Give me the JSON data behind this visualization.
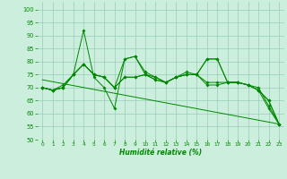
{
  "xlabel": "Humidité relative (%)",
  "xlim": [
    -0.5,
    23.5
  ],
  "ylim": [
    50,
    103
  ],
  "yticks": [
    50,
    55,
    60,
    65,
    70,
    75,
    80,
    85,
    90,
    95,
    100
  ],
  "xticks": [
    0,
    1,
    2,
    3,
    4,
    5,
    6,
    7,
    8,
    9,
    10,
    11,
    12,
    13,
    14,
    15,
    16,
    17,
    18,
    19,
    20,
    21,
    22,
    23
  ],
  "background_color": "#cceedd",
  "grid_color": "#99ccbb",
  "line_color": "#008800",
  "trend_x": [
    0,
    23
  ],
  "trend_y": [
    73,
    56
  ],
  "series": [
    [
      70,
      69,
      70,
      75,
      92,
      74,
      70,
      62,
      81,
      82,
      75,
      74,
      72,
      74,
      76,
      75,
      81,
      81,
      72,
      72,
      71,
      69,
      62,
      56
    ],
    [
      70,
      69,
      70,
      75,
      79,
      75,
      74,
      70,
      74,
      74,
      75,
      73,
      72,
      74,
      75,
      75,
      71,
      71,
      72,
      72,
      71,
      69,
      65,
      56
    ],
    [
      70,
      69,
      70,
      75,
      79,
      75,
      74,
      70,
      81,
      82,
      76,
      74,
      72,
      74,
      75,
      75,
      81,
      81,
      72,
      72,
      71,
      69,
      65,
      56
    ],
    [
      70,
      69,
      71,
      75,
      79,
      75,
      74,
      70,
      74,
      74,
      75,
      73,
      72,
      74,
      75,
      75,
      72,
      72,
      72,
      72,
      71,
      70,
      63,
      56
    ]
  ]
}
